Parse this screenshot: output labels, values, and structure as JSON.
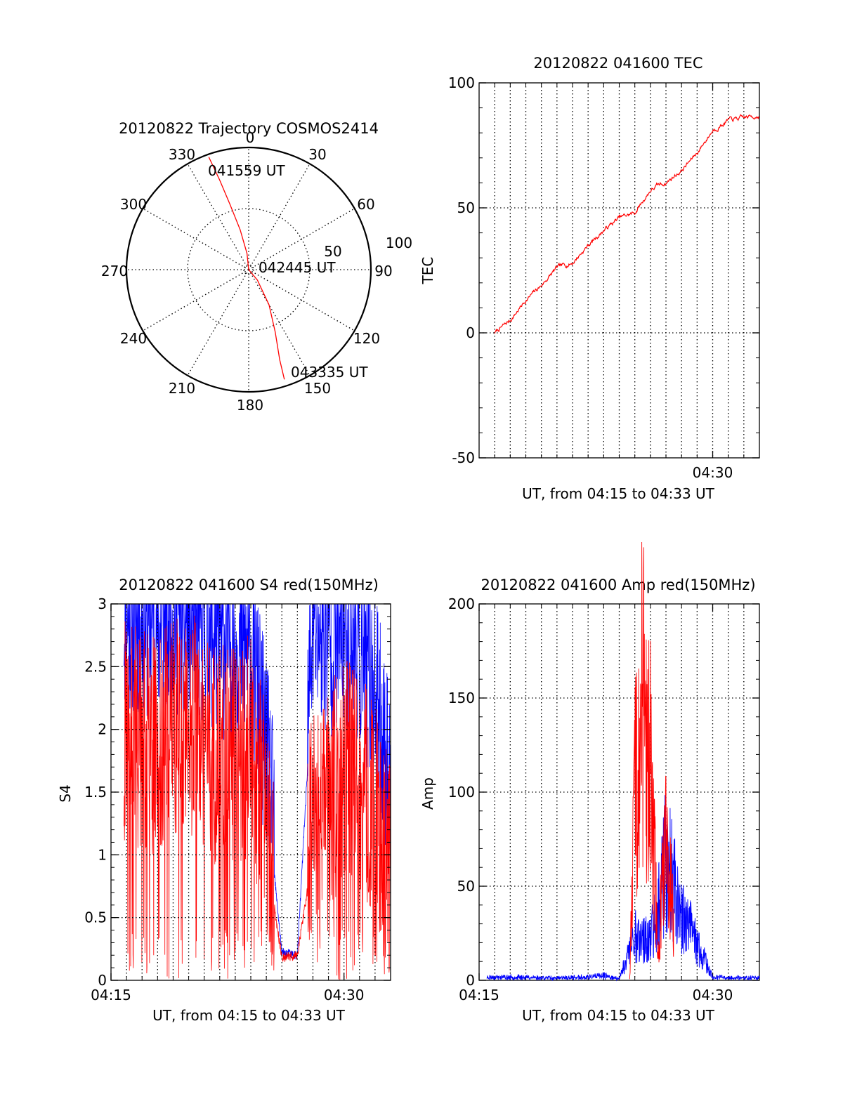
{
  "colors": {
    "red": "#ff0000",
    "blue": "#0000ff",
    "axis": "#000000",
    "background": "#ffffff"
  },
  "chart_data": [
    {
      "id": "trajectory",
      "type": "polar",
      "title": "20120822 Trajectory COSMOS2414",
      "azimuth_labels": [
        "0",
        "30",
        "60",
        "90",
        "120",
        "150",
        "180",
        "210",
        "240",
        "270",
        "300",
        "330"
      ],
      "elevation_ring_labels": [
        "50",
        "100"
      ],
      "elevation_rings": [
        50,
        100
      ],
      "radial_range": [
        0,
        90
      ],
      "grid": true,
      "series": [
        {
          "color": "red",
          "points_az_el": [
            [
              -19.5,
              2
            ],
            [
              -18,
              20
            ],
            [
              -16,
              40
            ],
            [
              -12,
              60
            ],
            [
              -6,
              78
            ],
            [
              0,
              90
            ],
            [
              140,
              80
            ],
            [
              150,
              60
            ],
            [
              157,
              40
            ],
            [
              161,
              20
            ],
            [
              162,
              5
            ]
          ]
        }
      ],
      "annotations": [
        {
          "text": "041559 UT",
          "az": -3,
          "el": 5
        },
        {
          "text": "042445 UT",
          "az": 90,
          "el": 72
        },
        {
          "text": "043335 UT",
          "az": 137,
          "el": 10
        }
      ]
    },
    {
      "id": "tec",
      "type": "line",
      "title": "20120822 041600 TEC",
      "xlabel": "UT, from 04:15 to 04:33 UT",
      "ylabel": "TEC",
      "xlim": [
        "04:15",
        "04:33"
      ],
      "ylim": [
        -50,
        100
      ],
      "yticks": [
        "-50",
        "0",
        "50",
        "100"
      ],
      "xticks": [
        "04:30"
      ],
      "grid": true,
      "series": [
        {
          "color": "red",
          "x": [
            "04:16",
            "04:17",
            "04:18",
            "04:19",
            "04:20",
            "04:21",
            "04:22",
            "04:23",
            "04:24",
            "04:25",
            "04:26",
            "04:26:30",
            "04:27",
            "04:28",
            "04:29",
            "04:30",
            "04:31",
            "04:32",
            "04:33"
          ],
          "y": [
            0,
            5,
            13,
            19,
            26,
            28,
            35,
            41,
            46,
            48,
            57,
            59,
            60,
            65,
            72,
            81,
            85,
            86,
            87
          ]
        }
      ]
    },
    {
      "id": "s4",
      "type": "line",
      "title": "20120822 041600 S4 red(150MHz)",
      "xlabel": "UT, from 04:15 to 04:33 UT",
      "ylabel": "S4",
      "xlim": [
        "04:15",
        "04:33"
      ],
      "ylim": [
        0,
        3
      ],
      "yticks": [
        "0",
        "0.5",
        "1",
        "1.5",
        "2",
        "2.5",
        "3"
      ],
      "xticks": [
        "04:15",
        "04:30"
      ],
      "grid": true,
      "series": [
        {
          "color": "blue",
          "x": [
            "04:16",
            "04:18",
            "04:20",
            "04:22",
            "04:24",
            "04:25",
            "04:26",
            "04:27",
            "04:28",
            "04:29",
            "04:30",
            "04:31",
            "04:32",
            "04:33"
          ],
          "y": [
            2.6,
            2.5,
            2.6,
            2.4,
            2.3,
            1.5,
            0.22,
            0.2,
            2.5,
            2.4,
            2.5,
            2.3,
            2.0,
            1.2
          ]
        },
        {
          "color": "red",
          "x": [
            "04:16",
            "04:18",
            "04:20",
            "04:22",
            "04:24",
            "04:25",
            "04:26",
            "04:27",
            "04:28",
            "04:29",
            "04:30",
            "04:31",
            "04:32",
            "04:33"
          ],
          "y": [
            1.7,
            1.6,
            1.8,
            1.5,
            1.6,
            1.0,
            0.18,
            0.2,
            1.0,
            1.2,
            1.4,
            1.3,
            1.1,
            0.6
          ]
        }
      ]
    },
    {
      "id": "amp",
      "type": "line",
      "title": "20120822 041600 Amp red(150MHz)",
      "xlabel": "UT, from 04:15 to 04:33 UT",
      "ylabel": "Amp",
      "xlim": [
        "04:15",
        "04:33"
      ],
      "ylim": [
        0,
        200
      ],
      "yticks": [
        "0",
        "50",
        "100",
        "150",
        "200"
      ],
      "xticks": [
        "04:15",
        "04:30"
      ],
      "grid": true,
      "series": [
        {
          "color": "blue",
          "x": [
            "04:15:30",
            "04:18",
            "04:20",
            "04:22",
            "04:23",
            "04:24",
            "04:25",
            "04:26",
            "04:27",
            "04:28",
            "04:30",
            "04:32",
            "04:33"
          ],
          "y": [
            2,
            2,
            1.5,
            2,
            3,
            1,
            30,
            25,
            80,
            45,
            2,
            1.5,
            2
          ]
        },
        {
          "color": "red",
          "x": [
            "04:24:40",
            "04:25",
            "04:25:30",
            "04:26",
            "04:26:30",
            "04:27",
            "04:27:30"
          ],
          "y": [
            0,
            120,
            190,
            140,
            20,
            90,
            40
          ]
        }
      ]
    }
  ]
}
